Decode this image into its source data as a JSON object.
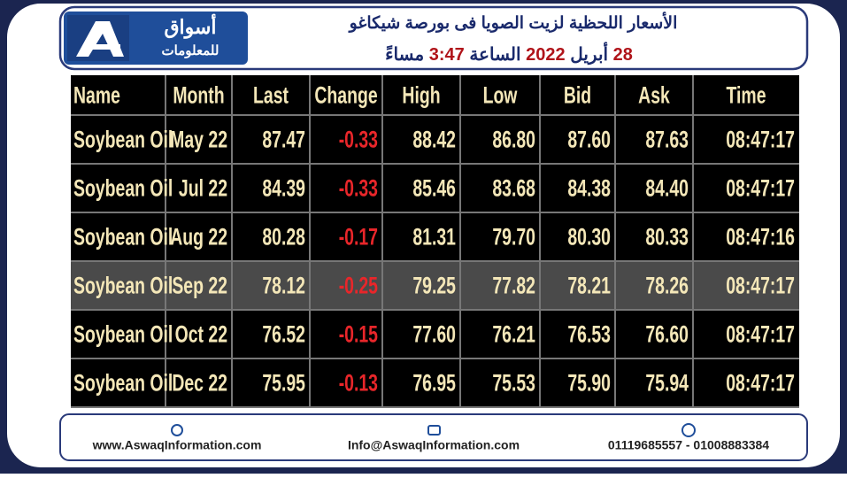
{
  "header": {
    "logo": {
      "name": "أسواق",
      "subtitle": "للمعلومات"
    },
    "title": "الأسعار اللحظية لزيت الصويا فى بورصة شيكاغو",
    "subtitle_parts": [
      {
        "text": "28",
        "color": "#b0141a"
      },
      {
        "text": "أبريل",
        "color": "#1a2a6c"
      },
      {
        "text": "2022",
        "color": "#b0141a"
      },
      {
        "text": "الساعة",
        "color": "#1a2a6c"
      },
      {
        "text": "3:47",
        "color": "#b0141a"
      },
      {
        "text": "مساءً",
        "color": "#1a2a6c"
      }
    ]
  },
  "table": {
    "columns": [
      "Name",
      "Month",
      "Last",
      "Change",
      "High",
      "Low",
      "Bid",
      "Ask",
      "Time"
    ],
    "highlight_row": 3,
    "rows": [
      [
        "Soybean Oil",
        "May 22",
        "87.47",
        "-0.33",
        "88.42",
        "86.80",
        "87.60",
        "87.63",
        "08:47:17"
      ],
      [
        "Soybean Oil",
        "Jul 22",
        "84.39",
        "-0.33",
        "85.46",
        "83.68",
        "84.38",
        "84.40",
        "08:47:17"
      ],
      [
        "Soybean Oil",
        "Aug 22",
        "80.28",
        "-0.17",
        "81.31",
        "79.70",
        "80.30",
        "80.33",
        "08:47:16"
      ],
      [
        "Soybean Oil",
        "Sep 22",
        "78.12",
        "-0.25",
        "79.25",
        "77.82",
        "78.21",
        "78.26",
        "08:47:17"
      ],
      [
        "Soybean Oil",
        "Oct 22",
        "76.52",
        "-0.15",
        "77.60",
        "76.21",
        "76.53",
        "76.60",
        "08:47:17"
      ],
      [
        "Soybean Oil",
        "Dec 22",
        "75.95",
        "-0.13",
        "76.95",
        "75.53",
        "75.90",
        "75.94",
        "08:47:17"
      ]
    ]
  },
  "footer": {
    "website": "www.AswaqInformation.com",
    "email": "Info@AswaqInformation.com",
    "phone": "01119685557 - 01008883384"
  }
}
